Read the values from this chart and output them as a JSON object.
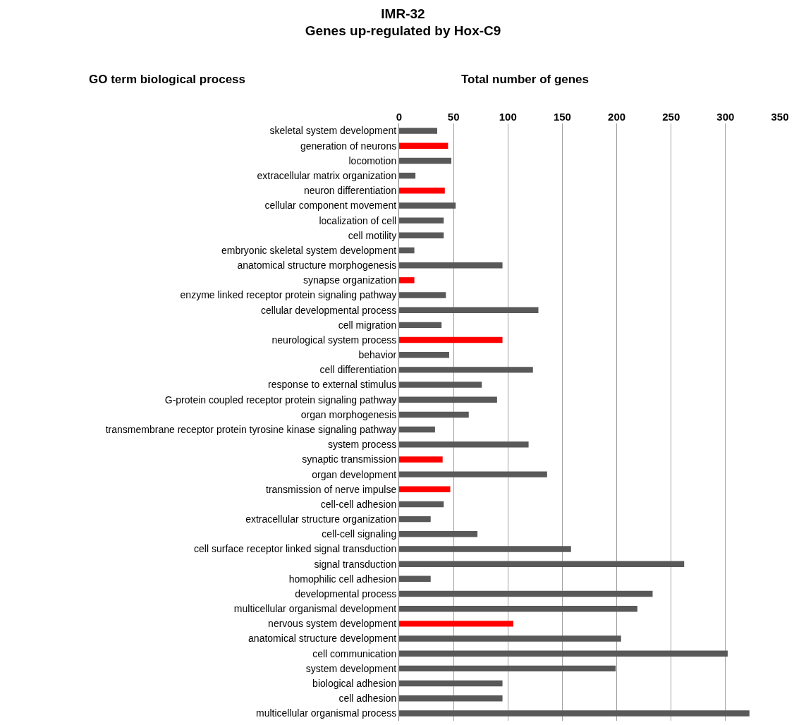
{
  "chart_data": {
    "type": "bar",
    "orientation": "horizontal",
    "title": "IMR-32\nGenes up-regulated by Hox-C9",
    "xlabel": "Total number of genes",
    "ylabel": "GO term biological process",
    "categories": [
      "skeletal system development",
      "generation of neurons",
      "locomotion",
      "extracellular matrix organization",
      "neuron differentiation",
      "cellular component movement",
      "localization of cell",
      "cell motility",
      "embryonic skeletal system development",
      "anatomical structure morphogenesis",
      "synapse organization",
      "enzyme linked receptor protein signaling pathway",
      "cellular developmental process",
      "cell migration",
      "neurological system process",
      "behavior",
      "cell differentiation",
      "response to external stimulus",
      "G-protein coupled receptor protein signaling pathway",
      "organ morphogenesis",
      "transmembrane receptor protein tyrosine kinase signaling pathway",
      "system process",
      "synaptic transmission",
      "organ development",
      "transmission of nerve impulse",
      "cell-cell adhesion",
      "extracellular structure organization",
      "cell-cell signaling",
      "cell surface receptor linked signal transduction",
      "signal transduction",
      "homophilic cell adhesion",
      "developmental process",
      "multicellular organismal development",
      "nervous system development",
      "anatomical structure development",
      "cell communication",
      "system development",
      "biological adhesion",
      "cell adhesion",
      "multicellular organismal process"
    ],
    "values": [
      35,
      45,
      48,
      15,
      42,
      52,
      41,
      41,
      14,
      95,
      14,
      43,
      128,
      39,
      95,
      46,
      123,
      76,
      90,
      64,
      33,
      119,
      40,
      136,
      47,
      41,
      29,
      72,
      158,
      262,
      29,
      233,
      219,
      105,
      204,
      302,
      199,
      95,
      95,
      322
    ],
    "colors": [
      "#595959",
      "#ff0000",
      "#595959",
      "#595959",
      "#ff0000",
      "#595959",
      "#595959",
      "#595959",
      "#595959",
      "#595959",
      "#ff0000",
      "#595959",
      "#595959",
      "#595959",
      "#ff0000",
      "#595959",
      "#595959",
      "#595959",
      "#595959",
      "#595959",
      "#595959",
      "#595959",
      "#ff0000",
      "#595959",
      "#ff0000",
      "#595959",
      "#595959",
      "#595959",
      "#595959",
      "#595959",
      "#595959",
      "#595959",
      "#595959",
      "#ff0000",
      "#595959",
      "#595959",
      "#595959",
      "#595959",
      "#595959",
      "#595959"
    ],
    "xlim": [
      0,
      350
    ],
    "xticks": [
      0,
      50,
      100,
      150,
      200,
      250,
      300,
      350
    ],
    "grid": "x",
    "legend": false
  }
}
